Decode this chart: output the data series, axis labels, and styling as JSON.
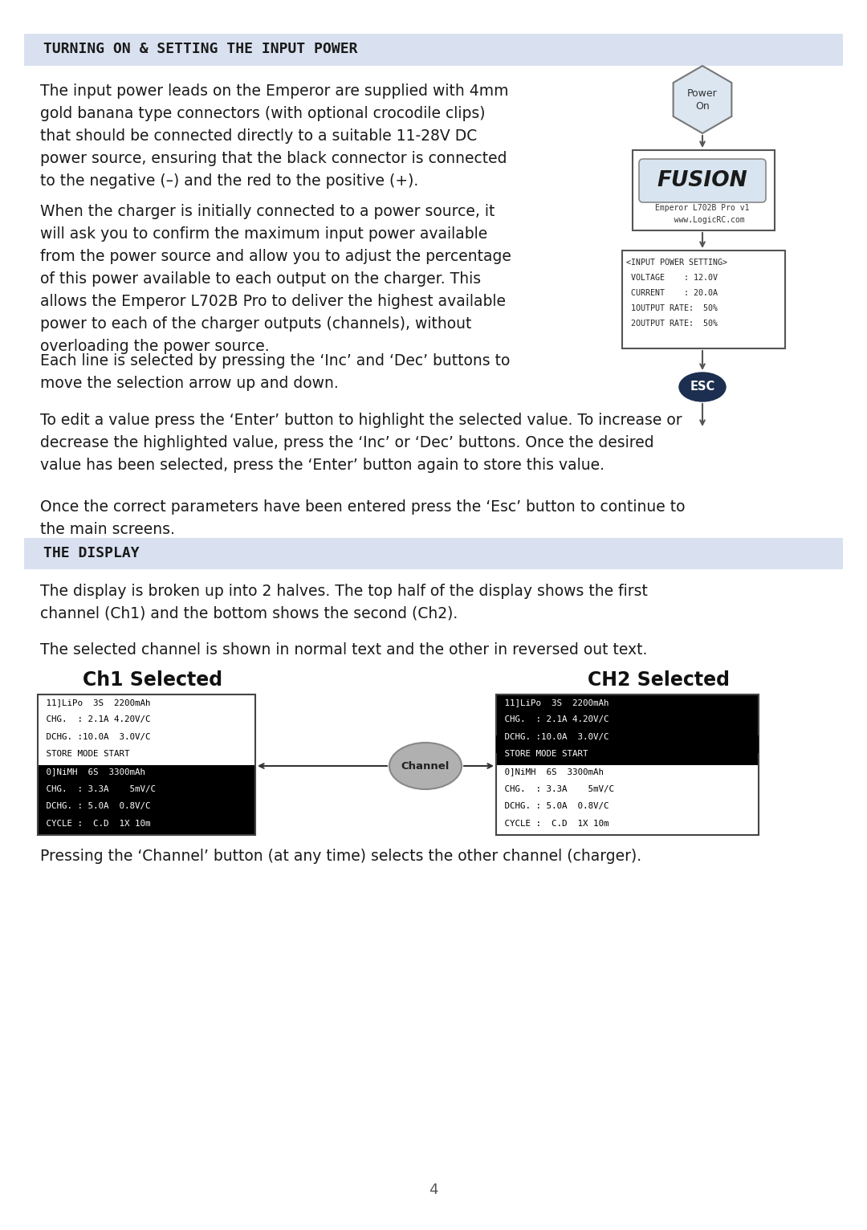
{
  "page_bg": "#ffffff",
  "section_bg": "#d9e1f0",
  "section1_title": "TURNING ON & SETTING THE INPUT POWER",
  "section2_title": "THE DISPLAY",
  "body_text_color": "#1a1a1a",
  "para1": "The input power leads on the Emperor are supplied with 4mm\ngold banana type connectors (with optional crocodile clips)\nthat should be connected directly to a suitable 11-28V DC\npower source, ensuring that the black connector is connected\nto the negative (–) and the red to the positive (+).",
  "para2": "When the charger is initially connected to a power source, it\nwill ask you to confirm the maximum input power available\nfrom the power source and allow you to adjust the percentage\nof this power available to each output on the charger. This\nallows the Emperor L702B Pro to deliver the highest available\npower to each of the charger outputs (channels), without\noverloading the power source.",
  "para3": "Each line is selected by pressing the ‘Inc’ and ‘Dec’ buttons to\nmove the selection arrow up and down.",
  "para4": "To edit a value press the ‘Enter’ button to highlight the selected value. To increase or\ndecrease the highlighted value, press the ‘Inc’ or ‘Dec’ buttons. Once the desired\nvalue has been selected, press the ‘Enter’ button again to store this value.",
  "para5": "Once the correct parameters have been entered press the ‘Esc’ button to continue to\nthe main screens.",
  "para6": "The display is broken up into 2 halves. The top half of the display shows the first\nchannel (Ch1) and the bottom shows the second (Ch2).",
  "para7": "The selected channel is shown in normal text and the other in reversed out text.",
  "para8": "Pressing the ‘Channel’ button (at any time) selects the other channel (charger).",
  "page_num": "4",
  "lcd_top_lines": [
    " 11]LiPo  3S  2200mAh",
    " CHG.  : 2.1A 4.20V/C",
    " DCHG. :10.0A  3.0V/C",
    " STORE MODE START"
  ],
  "lcd_bot_lines": [
    " 0]NiMH  6S  3300mAh",
    " CHG.  : 3.3A    5mV/C",
    " DCHG. : 5.0A  0.8V/C",
    " CYCLE :  C.D  1X 10m"
  ],
  "input_power_lines": [
    "<INPUT POWER SETTING>",
    " VOLTAGE    : 12.0V",
    " CURRENT    : 20.0A",
    " 1OUTPUT RATE:  50%",
    " 2OUTPUT RATE:  50%"
  ],
  "fusion_subtext1": "Emperor L702B Pro v1",
  "fusion_subtext2": "   www.LogicRC.com",
  "ch1_label": "Ch1 Selected",
  "ch2_label": "CH2 Selected",
  "channel_btn": "Channel",
  "esc_label": "ESC",
  "power_on_label1": "Power",
  "power_on_label2": "On"
}
